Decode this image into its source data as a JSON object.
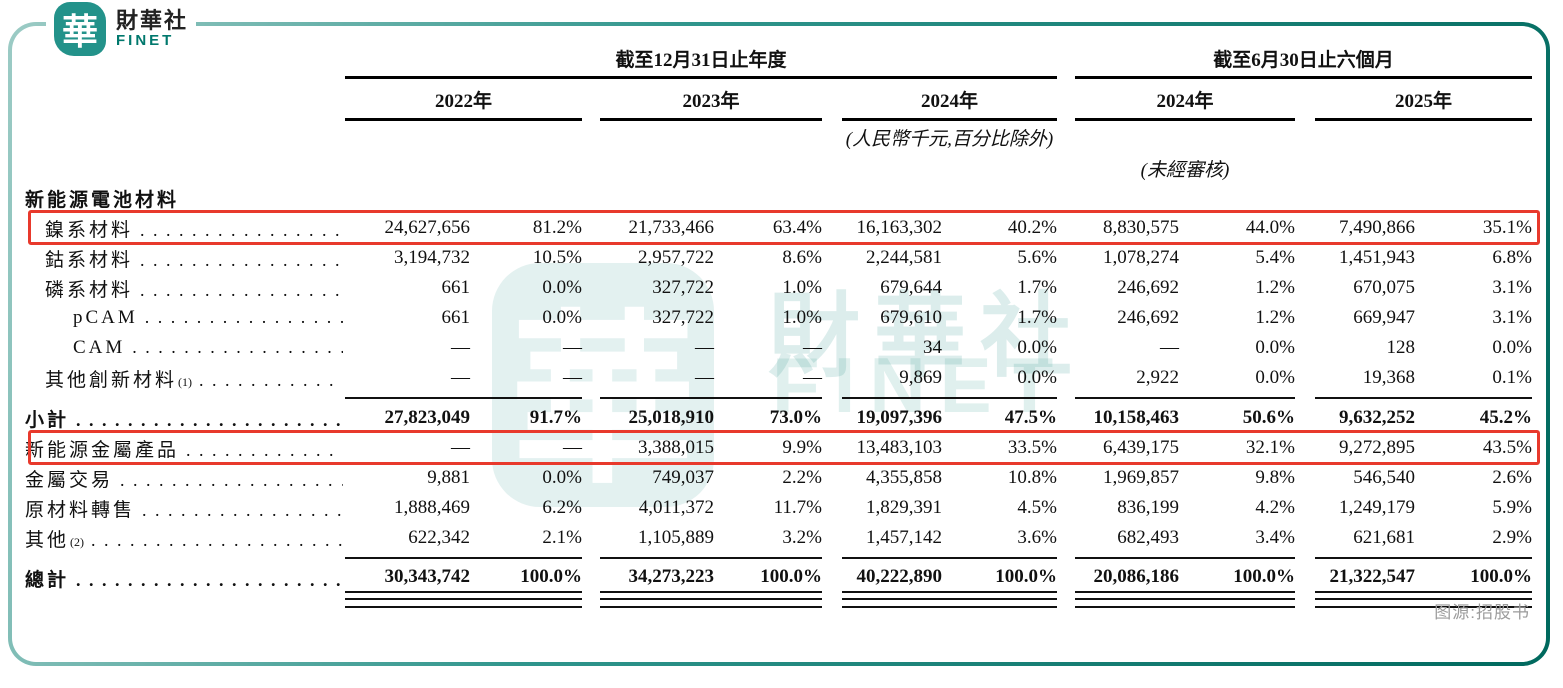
{
  "logo": {
    "glyph": "華",
    "name_zh": "財華社",
    "name_en": "FINET"
  },
  "watermark": {
    "glyph": "華",
    "text_zh": "財華社",
    "text_en": "FINET"
  },
  "source_note": "图源:招股书",
  "table": {
    "group_headers": [
      {
        "label": "截至12月31日止年度"
      },
      {
        "label": "截至6月30日止六個月"
      }
    ],
    "year_headers": [
      "2022年",
      "2023年",
      "2024年",
      "2024年",
      "2025年"
    ],
    "unit_note": "(人民幣千元,百分比除外)",
    "unaudited_note": "(未經審核)",
    "highlight_color": "#e8392c",
    "accent_color": "#23928a",
    "rows": [
      {
        "type": "section",
        "label": "新能源電池材料"
      },
      {
        "type": "data",
        "label": "鎳系材料",
        "indent": 1,
        "highlight": true,
        "values": [
          "24,627,656",
          "81.2%",
          "21,733,466",
          "63.4%",
          "16,163,302",
          "40.2%",
          "8,830,575",
          "44.0%",
          "7,490,866",
          "35.1%"
        ]
      },
      {
        "type": "data",
        "label": "鈷系材料",
        "indent": 1,
        "values": [
          "3,194,732",
          "10.5%",
          "2,957,722",
          "8.6%",
          "2,244,581",
          "5.6%",
          "1,078,274",
          "5.4%",
          "1,451,943",
          "6.8%"
        ]
      },
      {
        "type": "data",
        "label": "磷系材料",
        "indent": 1,
        "values": [
          "661",
          "0.0%",
          "327,722",
          "1.0%",
          "679,644",
          "1.7%",
          "246,692",
          "1.2%",
          "670,075",
          "3.1%"
        ]
      },
      {
        "type": "data",
        "label": "pCAM",
        "indent": 2,
        "values": [
          "661",
          "0.0%",
          "327,722",
          "1.0%",
          "679,610",
          "1.7%",
          "246,692",
          "1.2%",
          "669,947",
          "3.1%"
        ]
      },
      {
        "type": "data",
        "label": "CAM",
        "indent": 2,
        "values": [
          "—",
          "—",
          "—",
          "—",
          "34",
          "0.0%",
          "—",
          "0.0%",
          "128",
          "0.0%"
        ]
      },
      {
        "type": "data",
        "label": "其他創新材料",
        "sup": "(1)",
        "indent": 1,
        "values": [
          "—",
          "—",
          "—",
          "—",
          "9,869",
          "0.0%",
          "2,922",
          "0.0%",
          "19,368",
          "0.1%"
        ]
      },
      {
        "type": "data",
        "label": "小計",
        "bold": true,
        "rule_above": true,
        "values": [
          "27,823,049",
          "91.7%",
          "25,018,910",
          "73.0%",
          "19,097,396",
          "47.5%",
          "10,158,463",
          "50.6%",
          "9,632,252",
          "45.2%"
        ]
      },
      {
        "type": "data",
        "label": "新能源金屬產品",
        "highlight": true,
        "values": [
          "—",
          "—",
          "3,388,015",
          "9.9%",
          "13,483,103",
          "33.5%",
          "6,439,175",
          "32.1%",
          "9,272,895",
          "43.5%"
        ]
      },
      {
        "type": "data",
        "label": "金屬交易",
        "values": [
          "9,881",
          "0.0%",
          "749,037",
          "2.2%",
          "4,355,858",
          "10.8%",
          "1,969,857",
          "9.8%",
          "546,540",
          "2.6%"
        ]
      },
      {
        "type": "data",
        "label": "原材料轉售",
        "values": [
          "1,888,469",
          "6.2%",
          "4,011,372",
          "11.7%",
          "1,829,391",
          "4.5%",
          "836,199",
          "4.2%",
          "1,249,179",
          "5.9%"
        ]
      },
      {
        "type": "data",
        "label": "其他",
        "sup": "(2)",
        "values": [
          "622,342",
          "2.1%",
          "1,105,889",
          "3.2%",
          "1,457,142",
          "3.6%",
          "682,493",
          "3.4%",
          "621,681",
          "2.9%"
        ]
      },
      {
        "type": "data",
        "label": "總計",
        "bold": true,
        "rule_above": true,
        "underline": true,
        "double_below": true,
        "values": [
          "30,343,742",
          "100.0%",
          "34,273,223",
          "100.0%",
          "40,222,890",
          "100.0%",
          "20,086,186",
          "100.0%",
          "21,322,547",
          "100.0%"
        ]
      }
    ]
  }
}
